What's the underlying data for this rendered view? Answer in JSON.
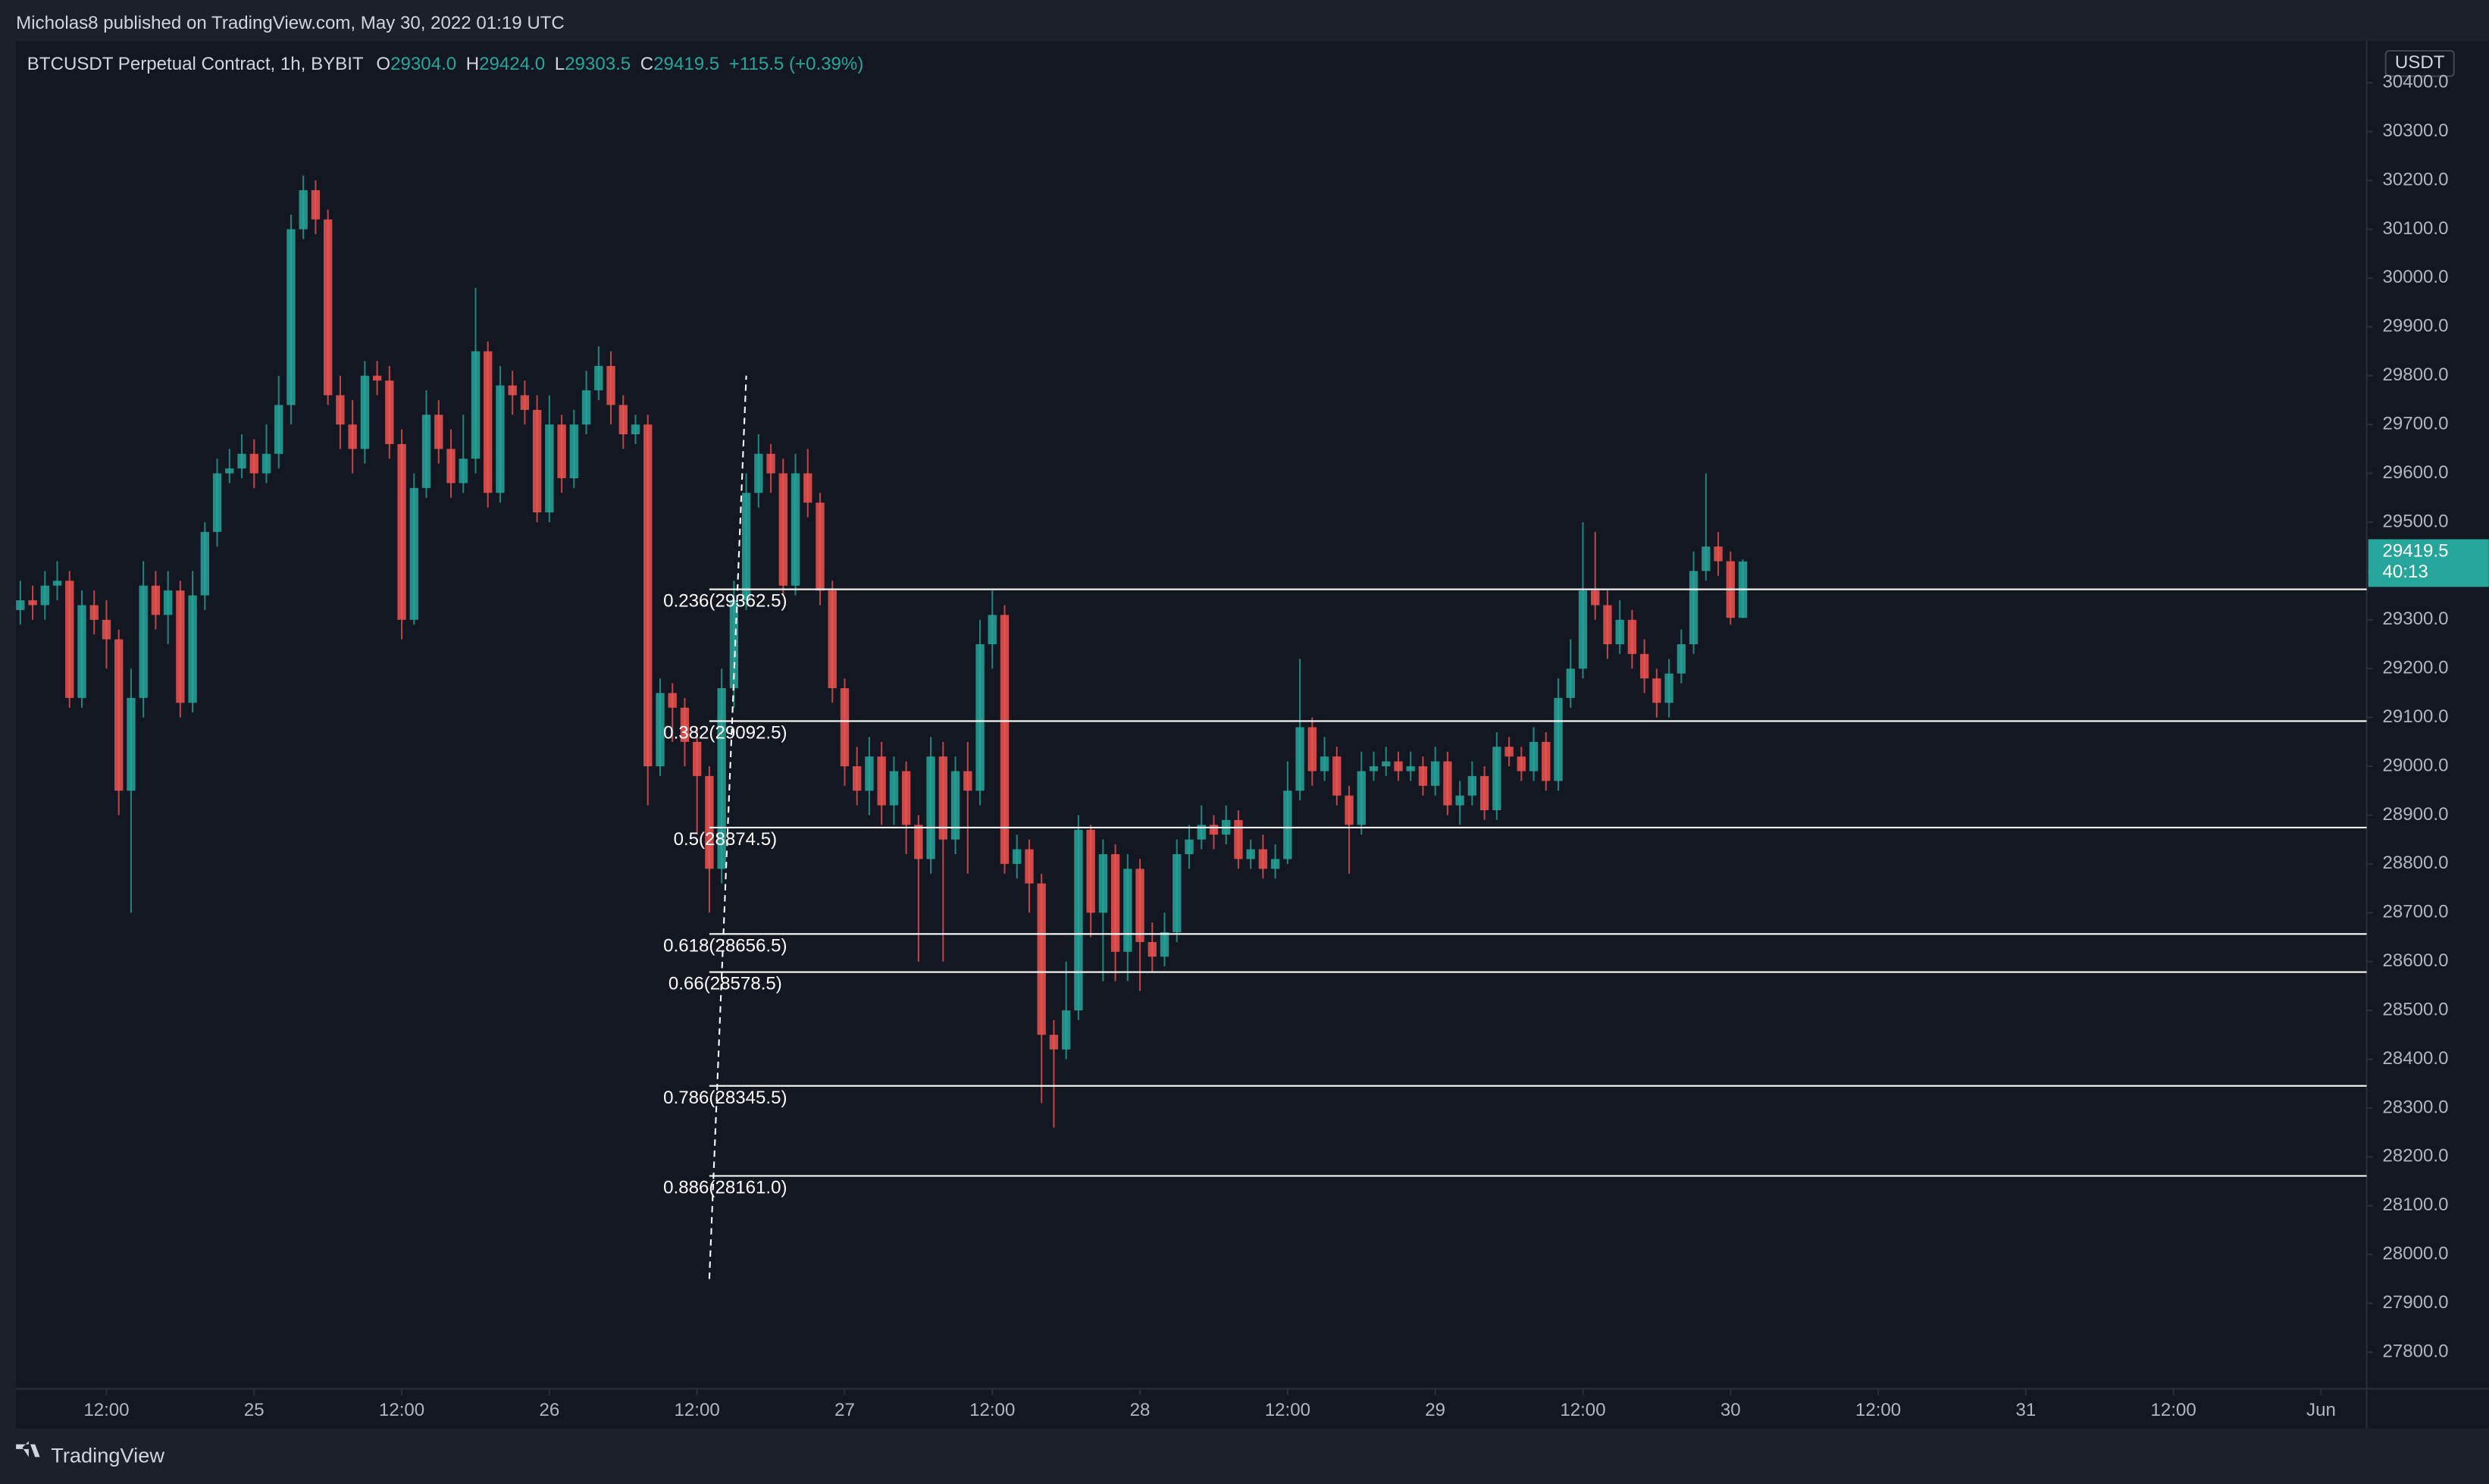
{
  "chart_data": {
    "type": "candlestick",
    "published": "Micholas8 published on TradingView.com, May 30, 2022 01:19 UTC",
    "symbol": "BTCUSDT Perpetual Contract, 1h, BYBIT",
    "ohlc_legend": [
      {
        "key": "O",
        "label": "29304.0"
      },
      {
        "key": "H",
        "label": "29424.0"
      },
      {
        "key": "L",
        "label": "29303.5"
      },
      {
        "key": "C",
        "label": "29419.5"
      }
    ],
    "change": "+115.5 (+0.39%)",
    "currency": "USDT",
    "footer": "TradingView",
    "up_color": "#26a69a",
    "down_color": "#ef5350",
    "x": [
      5,
      6,
      7,
      8,
      9,
      10,
      11,
      12,
      13,
      14,
      15,
      16,
      17,
      18,
      19,
      20,
      21,
      22,
      23,
      24,
      25,
      26,
      27,
      28,
      29,
      30,
      31,
      32,
      33,
      34,
      35,
      36,
      37,
      38,
      39,
      40,
      41,
      42,
      43,
      44,
      45,
      46,
      47,
      48,
      49,
      50,
      51,
      52,
      53,
      54,
      55,
      56,
      57,
      58,
      59,
      60,
      61,
      62,
      63,
      64,
      65,
      66,
      67,
      68,
      69,
      70,
      71,
      72,
      73,
      74,
      75,
      76,
      77,
      78,
      79,
      80,
      81,
      82,
      83,
      84,
      85,
      86,
      87,
      88,
      89,
      90,
      91,
      92,
      93,
      94,
      95,
      96,
      97,
      98,
      99,
      100,
      101,
      102,
      103,
      104,
      105,
      106,
      107,
      108,
      109,
      110,
      111,
      112,
      113,
      114,
      115,
      116,
      117,
      118,
      119,
      120,
      121,
      122,
      123,
      124,
      125,
      126,
      127,
      128,
      129,
      130,
      131,
      132,
      133,
      134,
      135,
      136,
      137,
      138,
      139,
      140,
      141,
      142,
      143,
      144,
      145
    ],
    "open": [
      29320,
      29340,
      29330,
      29370,
      29380,
      29140,
      29330,
      29300,
      29260,
      28950,
      29140,
      29370,
      29310,
      29360,
      29130,
      29350,
      29480,
      29600,
      29610,
      29640,
      29600,
      29640,
      29740,
      30100,
      30180,
      30120,
      29760,
      29700,
      29650,
      29800,
      29790,
      29660,
      29300,
      29570,
      29720,
      29650,
      29580,
      29630,
      29850,
      29560,
      29780,
      29760,
      29730,
      29520,
      29700,
      29590,
      29700,
      29770,
      29820,
      29740,
      29680,
      29700,
      29000,
      29150,
      29120,
      29050,
      28980,
      28790,
      29160,
      29340,
      29560,
      29640,
      29600,
      29370,
      29600,
      29540,
      29360,
      29160,
      29000,
      28950,
      29020,
      28920,
      28990,
      28880,
      28810,
      29020,
      28850,
      28990,
      28950,
      29250,
      29310,
      28800,
      28830,
      28760,
      28450,
      28420,
      28500,
      28870,
      28700,
      28820,
      28620,
      28790,
      28640,
      28610,
      28660,
      28820,
      28850,
      28880,
      28860,
      28890,
      28810,
      28830,
      28790,
      28810,
      28950,
      29080,
      28990,
      29020,
      28940,
      28880,
      28990,
      29000,
      29010,
      28990,
      29000,
      28960,
      29010,
      28920,
      28940,
      28980,
      28910,
      29040,
      29020,
      28990,
      29050,
      28970,
      29140,
      29200,
      29360,
      29330,
      29250,
      29300,
      29230,
      29180,
      29130,
      29190,
      29250,
      29400,
      29450,
      29420,
      29304
    ],
    "high": [
      29380,
      29370,
      29400,
      29420,
      29400,
      29360,
      29360,
      29340,
      29280,
      29200,
      29420,
      29400,
      29400,
      29380,
      29400,
      29500,
      29630,
      29650,
      29680,
      29670,
      29700,
      29800,
      30130,
      30210,
      30200,
      30140,
      29800,
      29750,
      29830,
      29830,
      29820,
      29690,
      29600,
      29770,
      29750,
      29690,
      29720,
      29980,
      29870,
      29820,
      29810,
      29790,
      29760,
      29760,
      29720,
      29730,
      29810,
      29860,
      29850,
      29760,
      29720,
      29720,
      29180,
      29170,
      29140,
      29080,
      29000,
      29200,
      29380,
      29600,
      29680,
      29660,
      29630,
      29640,
      29650,
      29560,
      29380,
      29180,
      29040,
      29060,
      29050,
      29020,
      29010,
      28900,
      29060,
      29050,
      29020,
      29050,
      29300,
      29360,
      29330,
      28860,
      28850,
      28780,
      28480,
      28600,
      28900,
      28880,
      28850,
      28840,
      28820,
      28810,
      28680,
      28700,
      28850,
      28880,
      28920,
      28900,
      28920,
      28910,
      28850,
      28860,
      28840,
      29010,
      29220,
      29100,
      29060,
      29040,
      28960,
      29030,
      29030,
      29040,
      29030,
      29030,
      29020,
      29040,
      29030,
      28970,
      29010,
      29000,
      29070,
      29060,
      29040,
      29080,
      29070,
      29180,
      29260,
      29500,
      29480,
      29360,
      29340,
      29320,
      29260,
      29200,
      29220,
      29280,
      29440,
      29600,
      29480,
      29440,
      29424
    ],
    "low": [
      29290,
      29300,
      29300,
      29340,
      29120,
      29120,
      29270,
      29200,
      28900,
      28700,
      29100,
      29280,
      29250,
      29100,
      29110,
      29320,
      29450,
      29580,
      29590,
      29570,
      29580,
      29610,
      29700,
      30080,
      30090,
      29740,
      29650,
      29600,
      29620,
      29760,
      29630,
      29260,
      29290,
      29550,
      29620,
      29550,
      29560,
      29600,
      29530,
      29540,
      29720,
      29700,
      29500,
      29500,
      29560,
      29570,
      29680,
      29750,
      29700,
      29650,
      29660,
      28920,
      28980,
      29050,
      29000,
      28860,
      28700,
      28760,
      29120,
      29320,
      29530,
      29560,
      29350,
      29350,
      29510,
      29330,
      29130,
      28960,
      28920,
      28900,
      28880,
      28880,
      28820,
      28600,
      28780,
      28600,
      28820,
      28780,
      28920,
      29200,
      28780,
      28770,
      28700,
      28310,
      28260,
      28400,
      28480,
      28650,
      28560,
      28560,
      28560,
      28540,
      28580,
      28590,
      28640,
      28790,
      28830,
      28830,
      28840,
      28790,
      28790,
      28770,
      28770,
      28800,
      28930,
      28960,
      28970,
      28920,
      28780,
      28860,
      28970,
      28980,
      28970,
      28970,
      28940,
      28940,
      28900,
      28880,
      28920,
      28890,
      28890,
      29000,
      28970,
      28970,
      28950,
      28950,
      29120,
      29180,
      29300,
      29220,
      29230,
      29200,
      29150,
      29100,
      29100,
      29170,
      29230,
      29380,
      29390,
      29290,
      29303.5
    ],
    "close": [
      29340,
      29330,
      29370,
      29380,
      29140,
      29330,
      29300,
      29260,
      28950,
      29140,
      29370,
      29310,
      29360,
      29130,
      29350,
      29480,
      29600,
      29610,
      29640,
      29600,
      29640,
      29740,
      30100,
      30180,
      30120,
      29760,
      29700,
      29650,
      29800,
      29790,
      29660,
      29300,
      29570,
      29720,
      29650,
      29580,
      29630,
      29850,
      29560,
      29780,
      29760,
      29730,
      29520,
      29700,
      29590,
      29700,
      29770,
      29820,
      29740,
      29680,
      29700,
      29000,
      29150,
      29120,
      29050,
      28980,
      28790,
      29160,
      29340,
      29560,
      29640,
      29600,
      29370,
      29600,
      29540,
      29360,
      29160,
      29000,
      28950,
      29020,
      28920,
      28990,
      28880,
      28810,
      29020,
      28850,
      28990,
      28950,
      29250,
      29310,
      28800,
      28830,
      28760,
      28450,
      28420,
      28500,
      28870,
      28700,
      28820,
      28620,
      28790,
      28640,
      28610,
      28660,
      28820,
      28850,
      28880,
      28860,
      28890,
      28810,
      28830,
      28790,
      28810,
      28950,
      29080,
      28990,
      29020,
      28940,
      28880,
      28990,
      29000,
      29010,
      28990,
      29000,
      28960,
      29010,
      28920,
      28940,
      28980,
      28910,
      29040,
      29020,
      28990,
      29050,
      28970,
      29140,
      29200,
      29360,
      29330,
      29250,
      29300,
      29230,
      29180,
      29130,
      29190,
      29250,
      29400,
      29450,
      29420,
      29304,
      29419.5
    ],
    "xlim": [
      4.65,
      195.7
    ],
    "xticks": [
      {
        "value": 12,
        "label": "12:00"
      },
      {
        "value": 24,
        "label": "25"
      },
      {
        "value": 36,
        "label": "12:00"
      },
      {
        "value": 48,
        "label": "26"
      },
      {
        "value": 60,
        "label": "12:00"
      },
      {
        "value": 72,
        "label": "27"
      },
      {
        "value": 84,
        "label": "12:00"
      },
      {
        "value": 96,
        "label": "28"
      },
      {
        "value": 108,
        "label": "12:00"
      },
      {
        "value": 120,
        "label": "29"
      },
      {
        "value": 132,
        "label": "12:00"
      },
      {
        "value": 144,
        "label": "30"
      },
      {
        "value": 156,
        "label": "12:00"
      },
      {
        "value": 168,
        "label": "31"
      },
      {
        "value": 180,
        "label": "12:00"
      },
      {
        "value": 192,
        "label": "Jun"
      }
    ],
    "ylim": [
      27725,
      30485
    ],
    "yticks": [
      {
        "value": 27800,
        "label": "27800.0"
      },
      {
        "value": 27900,
        "label": "27900.0"
      },
      {
        "value": 28000,
        "label": "28000.0"
      },
      {
        "value": 28100,
        "label": "28100.0"
      },
      {
        "value": 28200,
        "label": "28200.0"
      },
      {
        "value": 28300,
        "label": "28300.0"
      },
      {
        "value": 28400,
        "label": "28400.0"
      },
      {
        "value": 28500,
        "label": "28500.0"
      },
      {
        "value": 28600,
        "label": "28600.0"
      },
      {
        "value": 28700,
        "label": "28700.0"
      },
      {
        "value": 28800,
        "label": "28800.0"
      },
      {
        "value": 28900,
        "label": "28900.0"
      },
      {
        "value": 29000,
        "label": "29000.0"
      },
      {
        "value": 29100,
        "label": "29100.0"
      },
      {
        "value": 29200,
        "label": "29200.0"
      },
      {
        "value": 29300,
        "label": "29300.0"
      },
      {
        "value": 29400,
        "label": "29400.0"
      },
      {
        "value": 29500,
        "label": "29500.0"
      },
      {
        "value": 29600,
        "label": "29600.0"
      },
      {
        "value": 29700,
        "label": "29700.0"
      },
      {
        "value": 29800,
        "label": "29800.0"
      },
      {
        "value": 29900,
        "label": "29900.0"
      },
      {
        "value": 30000,
        "label": "30000.0"
      },
      {
        "value": 30100,
        "label": "30100.0"
      },
      {
        "value": 30200,
        "label": "30200.0"
      },
      {
        "value": 30300,
        "label": "30300.0"
      },
      {
        "value": 30400,
        "label": "30400.0"
      }
    ],
    "last_price": {
      "value": 29419.5,
      "label": "29419.5"
    },
    "countdown": "40:13",
    "fib": {
      "x_start": 61,
      "levels": [
        {
          "value": 29362.5,
          "label": "0.236(29362.5)"
        },
        {
          "value": 29092.5,
          "label": "0.382(29092.5)"
        },
        {
          "value": 28874.5,
          "label": "0.5(28874.5)"
        },
        {
          "value": 28656.5,
          "label": "0.618(28656.5)"
        },
        {
          "value": 28578.5,
          "label": "0.66(28578.5)"
        },
        {
          "value": 28345.5,
          "label": "0.786(28345.5)"
        },
        {
          "value": 28161.0,
          "label": "0.886(28161.0)"
        }
      ]
    },
    "trend_line": {
      "x": [
        61,
        64
      ],
      "y": [
        27950,
        29800
      ]
    }
  }
}
